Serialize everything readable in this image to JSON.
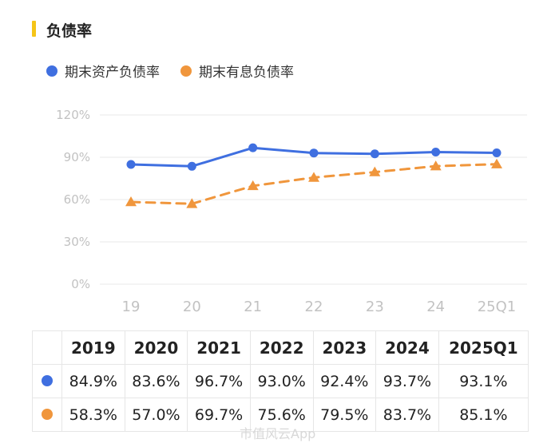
{
  "header": {
    "title": "负债率"
  },
  "colors": {
    "accent_bar": "#f5c518",
    "series1": "#3f6fe0",
    "series2": "#f0963c",
    "grid": "#e9e9e9",
    "axis_text": "#c2c2c2"
  },
  "chart_data": {
    "type": "line",
    "title": "",
    "xlabel": "",
    "ylabel": "",
    "x": [
      "19",
      "20",
      "21",
      "22",
      "23",
      "24",
      "25Q1"
    ],
    "yticks": [
      "120%",
      "90%",
      "60%",
      "30%",
      "0%"
    ],
    "ylim": [
      0,
      120
    ],
    "grid": true,
    "legend": "top-left",
    "series": [
      {
        "name": "期末资产负债率",
        "values": [
          84.9,
          83.6,
          96.7,
          93.0,
          92.4,
          93.7,
          93.1
        ],
        "color": "#3f6fe0",
        "style": "solid",
        "marker": "circle"
      },
      {
        "name": "期末有息负债率",
        "values": [
          58.3,
          57.0,
          69.7,
          75.6,
          79.5,
          83.7,
          85.1
        ],
        "color": "#f0963c",
        "style": "dashed",
        "marker": "triangle"
      }
    ]
  },
  "table": {
    "headers": [
      "2019",
      "2020",
      "2021",
      "2022",
      "2023",
      "2024",
      "2025Q1"
    ],
    "rows": [
      [
        "84.9%",
        "83.6%",
        "96.7%",
        "93.0%",
        "92.4%",
        "93.7%",
        "93.1%"
      ],
      [
        "58.3%",
        "57.0%",
        "69.7%",
        "75.6%",
        "79.5%",
        "83.7%",
        "85.1%"
      ]
    ]
  },
  "watermark": "市值风云App"
}
